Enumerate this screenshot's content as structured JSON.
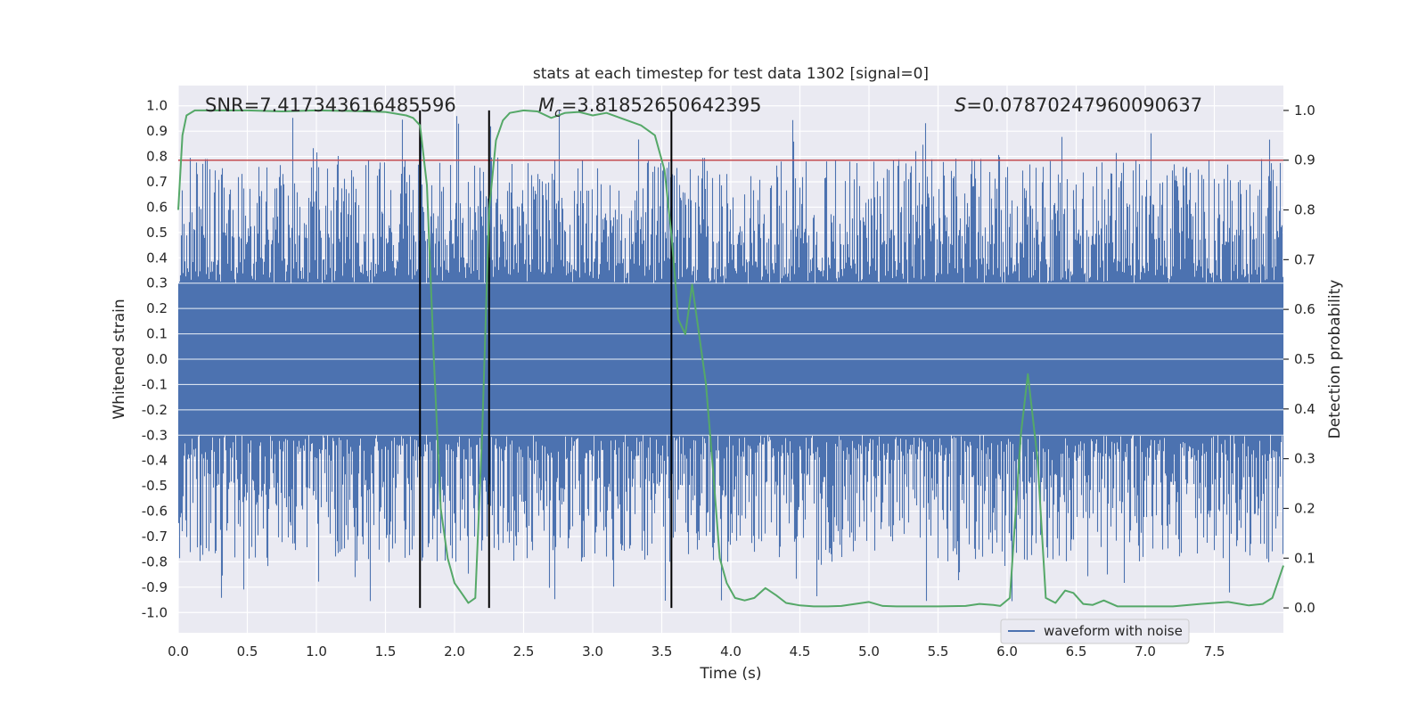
{
  "chart_data": {
    "type": "line",
    "title": "stats at each timestep for test data 1302 [signal=0]",
    "xlabel": "Time (s)",
    "ylabel": "Whitened strain",
    "y2label": "Detection probability",
    "xlim": [
      0.0,
      8.0
    ],
    "ylim": [
      -1.08,
      1.08
    ],
    "y2lim": [
      -0.05,
      1.05
    ],
    "xticks": [
      0.0,
      0.5,
      1.0,
      1.5,
      2.0,
      2.5,
      3.0,
      3.5,
      4.0,
      4.5,
      5.0,
      5.5,
      6.0,
      6.5,
      7.0,
      7.5
    ],
    "yticks": [
      -1.0,
      -0.9,
      -0.8,
      -0.7,
      -0.6,
      -0.5,
      -0.4,
      -0.3,
      -0.2,
      -0.1,
      0.0,
      0.1,
      0.2,
      0.3,
      0.4,
      0.5,
      0.6,
      0.7,
      0.8,
      0.9,
      1.0
    ],
    "y2ticks": [
      0.0,
      0.1,
      0.2,
      0.3,
      0.4,
      0.5,
      0.6,
      0.7,
      0.8,
      0.9,
      1.0
    ],
    "grid": true,
    "legend": {
      "position": "bottom-right",
      "entries": [
        "waveform with noise"
      ]
    },
    "annotations": {
      "snr": "SNR=7.417343616485596",
      "mc_symbol": "M",
      "mc_sub": "c",
      "mc_value": "=3.81852650642395",
      "s_symbol": "S",
      "s_value": "=0.07870247960090637"
    },
    "threshold": {
      "axis": "y2",
      "value": 0.9,
      "color": "#c44e52"
    },
    "vlines": [
      1.75,
      2.25,
      3.57
    ],
    "series": [
      {
        "name": "waveform with noise",
        "axis": "y",
        "color": "#4c72b0",
        "style": "noise",
        "envelope_core": 0.35,
        "spike_max": 1.0,
        "spike_min": -0.97,
        "n_samples": 8192
      },
      {
        "name": "",
        "axis": "y2",
        "color": "#55a868",
        "x": [
          0.0,
          0.03,
          0.06,
          0.12,
          0.25,
          0.5,
          0.75,
          1.0,
          1.25,
          1.5,
          1.65,
          1.7,
          1.75,
          1.8,
          1.85,
          1.9,
          1.95,
          2.0,
          2.05,
          2.1,
          2.15,
          2.2,
          2.25,
          2.3,
          2.35,
          2.4,
          2.5,
          2.6,
          2.7,
          2.8,
          2.9,
          3.0,
          3.1,
          3.2,
          3.35,
          3.45,
          3.52,
          3.57,
          3.62,
          3.67,
          3.72,
          3.77,
          3.82,
          3.87,
          3.92,
          3.97,
          4.03,
          4.1,
          4.17,
          4.25,
          4.33,
          4.4,
          4.5,
          4.6,
          4.7,
          4.8,
          4.9,
          5.0,
          5.1,
          5.2,
          5.3,
          5.5,
          5.7,
          5.8,
          5.9,
          5.95,
          6.02,
          6.1,
          6.15,
          6.22,
          6.28,
          6.35,
          6.42,
          6.48,
          6.55,
          6.62,
          6.7,
          6.8,
          7.0,
          7.2,
          7.4,
          7.6,
          7.75,
          7.85,
          7.92,
          8.0
        ],
        "y": [
          0.8,
          0.95,
          0.99,
          1.0,
          1.0,
          1.0,
          0.998,
          1.0,
          0.999,
          0.997,
          0.99,
          0.985,
          0.97,
          0.85,
          0.5,
          0.2,
          0.1,
          0.05,
          0.03,
          0.01,
          0.02,
          0.35,
          0.8,
          0.94,
          0.98,
          0.995,
          1.0,
          0.998,
          0.985,
          0.995,
          0.997,
          0.99,
          0.995,
          0.985,
          0.97,
          0.95,
          0.88,
          0.75,
          0.58,
          0.55,
          0.65,
          0.55,
          0.45,
          0.28,
          0.1,
          0.05,
          0.02,
          0.015,
          0.02,
          0.04,
          0.025,
          0.01,
          0.005,
          0.003,
          0.003,
          0.004,
          0.008,
          0.012,
          0.004,
          0.003,
          0.003,
          0.003,
          0.004,
          0.008,
          0.006,
          0.004,
          0.02,
          0.35,
          0.47,
          0.3,
          0.02,
          0.01,
          0.035,
          0.03,
          0.008,
          0.006,
          0.015,
          0.003,
          0.003,
          0.003,
          0.008,
          0.012,
          0.005,
          0.008,
          0.02,
          0.085
        ]
      }
    ]
  }
}
